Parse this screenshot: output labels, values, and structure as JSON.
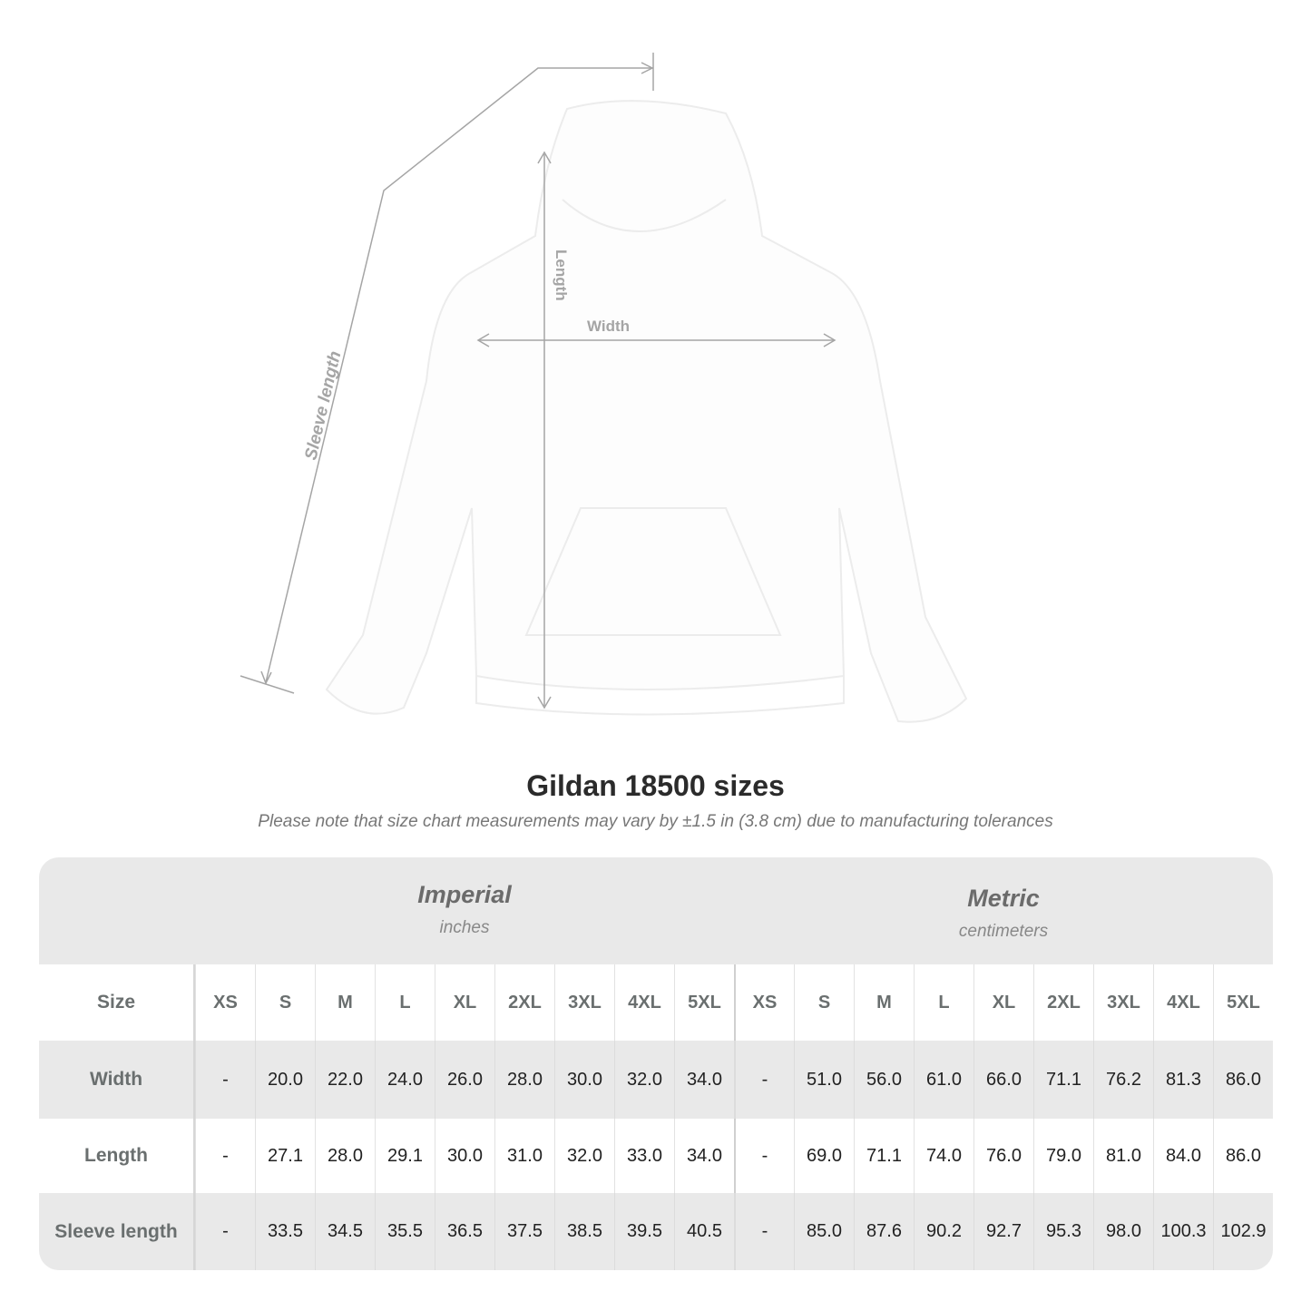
{
  "diagram": {
    "labels": {
      "sleeve": "Sleeve length",
      "length": "Length",
      "width": "Width"
    }
  },
  "title": "Gildan 18500 sizes",
  "subtitle": "Please note that size chart measurements may vary by ±1.5 in (3.8 cm) due to manufacturing tolerances",
  "units": {
    "imperial": {
      "name": "Imperial",
      "unit": "inches"
    },
    "metric": {
      "name": "Metric",
      "unit": "centimeters"
    }
  },
  "table": {
    "size_label": "Size",
    "sizes": [
      "XS",
      "S",
      "M",
      "L",
      "XL",
      "2XL",
      "3XL",
      "4XL",
      "5XL",
      "XS",
      "S",
      "M",
      "L",
      "XL",
      "2XL",
      "3XL",
      "4XL",
      "5XL"
    ],
    "rows": [
      {
        "label": "Width",
        "values": [
          "-",
          "20.0",
          "22.0",
          "24.0",
          "26.0",
          "28.0",
          "30.0",
          "32.0",
          "34.0",
          "-",
          "51.0",
          "56.0",
          "61.0",
          "66.0",
          "71.1",
          "76.2",
          "81.3",
          "86.0"
        ]
      },
      {
        "label": "Length",
        "values": [
          "-",
          "27.1",
          "28.0",
          "29.1",
          "30.0",
          "31.0",
          "32.0",
          "33.0",
          "34.0",
          "-",
          "69.0",
          "71.1",
          "74.0",
          "76.0",
          "79.0",
          "81.0",
          "84.0",
          "86.0"
        ]
      },
      {
        "label": "Sleeve length",
        "values": [
          "-",
          "33.5",
          "34.5",
          "35.5",
          "36.5",
          "37.5",
          "38.5",
          "39.5",
          "40.5",
          "-",
          "85.0",
          "87.6",
          "90.2",
          "92.7",
          "95.3",
          "98.0",
          "100.3",
          "102.9"
        ]
      }
    ]
  }
}
